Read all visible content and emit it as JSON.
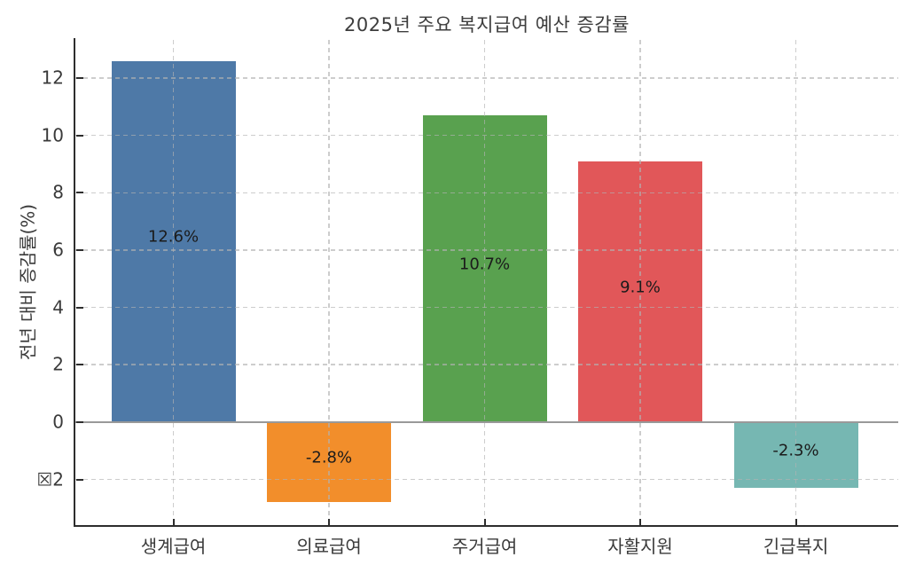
{
  "figure": {
    "background": "#ffffff"
  },
  "chart_data": {
    "type": "bar",
    "title": "2025년 주요 복지급여 예산 증감률",
    "ylabel": "전년 대비 증감률(%)",
    "xlabel": "",
    "categories": [
      "생계급여",
      "의료급여",
      "주거급여",
      "자활지원",
      "긴급복지"
    ],
    "values": [
      12.6,
      -2.8,
      10.7,
      9.1,
      -2.3
    ],
    "value_labels": [
      "12.6%",
      "-2.8%",
      "10.7%",
      "9.1%",
      "-2.3%"
    ],
    "bar_colors": [
      "#4e79a7",
      "#f28e2b",
      "#59a14f",
      "#e15759",
      "#76b7b2"
    ],
    "yticks": [
      {
        "value": 12,
        "label": "12"
      },
      {
        "value": 10,
        "label": "10"
      },
      {
        "value": 8,
        "label": "8"
      },
      {
        "value": 6,
        "label": "6"
      },
      {
        "value": 4,
        "label": "4"
      },
      {
        "value": 2,
        "label": "2"
      },
      {
        "value": 0,
        "label": "0"
      },
      {
        "value": -2,
        "label": "☒2"
      }
    ],
    "ylim": [
      -3.59,
      13.33
    ],
    "grid": {
      "visible": true,
      "line_style": "dashed",
      "color": "#b2b2b2",
      "horizontal": true,
      "vertical": true
    },
    "zero_line_color": "#999999",
    "axis_color": "#2d2d2d",
    "text_color": "#3a3a3a",
    "value_label_color": "#1b1b1b",
    "legend": "none"
  }
}
